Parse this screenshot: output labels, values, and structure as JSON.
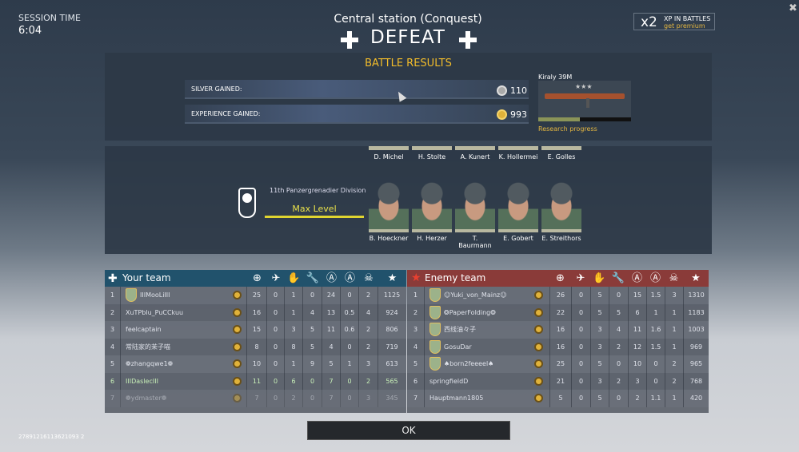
{
  "session": {
    "label": "SESSION TIME",
    "time": "6:04",
    "id": "27891216113621093 2"
  },
  "header": {
    "map": "Central station (Conquest)",
    "result": "DEFEAT"
  },
  "premium": {
    "multiplier": "x2",
    "line1": "XP IN BATTLES",
    "line2": "get premium"
  },
  "battle_results": {
    "title": "BATTLE RESULTS",
    "silver_label": "SILVER GAINED:",
    "silver_value": "110",
    "exp_label": "EXPERIENCE GAINED:",
    "exp_value": "993",
    "weapon": "Kiraly 39M",
    "weapon_stars": "★★★",
    "research_label": "Research progress",
    "research_progress": 0.45
  },
  "squad": {
    "division": "11th Panzergrenadier Division",
    "level": "Max Level",
    "top_row": [
      "D. Michel",
      "H. Stolte",
      "A. Kunert",
      "K. Hollermei",
      "E. Golles"
    ],
    "bottom_row": [
      "B. Hoeckner",
      "H. Herzer",
      "T. Baurmann",
      "E. Gobert",
      "E. Streithors"
    ]
  },
  "columns": [
    "target-icon",
    "plane-icon",
    "hand-icon",
    "wrench-icon",
    "shield-a-icon",
    "circle-a-icon",
    "skull-icon",
    "star-icon"
  ],
  "your_team": {
    "title": "Your team",
    "rows": [
      {
        "n": "1",
        "name": "IIIMooLiIII",
        "badge": true,
        "stats": [
          "25",
          "0",
          "1",
          "0",
          "24",
          "0",
          "2",
          "1125"
        ]
      },
      {
        "n": "2",
        "name": "XuTPblu_PuCCkuu",
        "stats": [
          "16",
          "0",
          "1",
          "4",
          "13",
          "0.5",
          "4",
          "924"
        ]
      },
      {
        "n": "3",
        "name": "feelcaptain",
        "stats": [
          "15",
          "0",
          "3",
          "5",
          "11",
          "0.6",
          "2",
          "806"
        ]
      },
      {
        "n": "4",
        "name": "常陆家的茉子喵",
        "stats": [
          "8",
          "0",
          "8",
          "5",
          "4",
          "0",
          "2",
          "719"
        ]
      },
      {
        "n": "5",
        "name": "❁zhangqwe1❁",
        "stats": [
          "10",
          "0",
          "1",
          "9",
          "5",
          "1",
          "3",
          "613"
        ]
      },
      {
        "n": "6",
        "name": "IIIDaslecIII",
        "highlight": "#c8f0b8",
        "stats": [
          "11",
          "0",
          "6",
          "0",
          "7",
          "0",
          "2",
          "565"
        ]
      },
      {
        "n": "7",
        "name": "❁ydmaster❁",
        "dim": true,
        "stats": [
          "7",
          "0",
          "2",
          "0",
          "7",
          "0",
          "3",
          "345"
        ]
      }
    ]
  },
  "enemy_team": {
    "title": "Enemy team",
    "rows": [
      {
        "n": "1",
        "name": "☺Yuki_von_Mainz☺",
        "badge": true,
        "stats": [
          "26",
          "0",
          "5",
          "0",
          "15",
          "1.5",
          "3",
          "1310"
        ]
      },
      {
        "n": "2",
        "name": "❂PaperFolding❂",
        "badge": true,
        "stats": [
          "22",
          "0",
          "5",
          "5",
          "6",
          "1",
          "1",
          "1183"
        ]
      },
      {
        "n": "3",
        "name": "西线油々子",
        "badge": true,
        "stats": [
          "16",
          "0",
          "3",
          "4",
          "11",
          "1.6",
          "1",
          "1003"
        ]
      },
      {
        "n": "4",
        "name": "GosuDar",
        "badge": true,
        "stats": [
          "16",
          "0",
          "3",
          "2",
          "12",
          "1.5",
          "1",
          "969"
        ]
      },
      {
        "n": "5",
        "name": "♠born2feeeel♠",
        "badge": true,
        "stats": [
          "25",
          "0",
          "5",
          "0",
          "10",
          "0",
          "2",
          "965"
        ]
      },
      {
        "n": "6",
        "name": "springfieldD",
        "stats": [
          "21",
          "0",
          "3",
          "2",
          "3",
          "0",
          "2",
          "768"
        ]
      },
      {
        "n": "7",
        "name": "Hauptmann1805",
        "stats": [
          "5",
          "0",
          "5",
          "0",
          "2",
          "1.1",
          "1",
          "420"
        ]
      }
    ]
  },
  "ok_label": "OK",
  "colors": {
    "accent": "#f2bc2a",
    "your_team": "#21526c",
    "enemy_team": "#8a3b39"
  }
}
